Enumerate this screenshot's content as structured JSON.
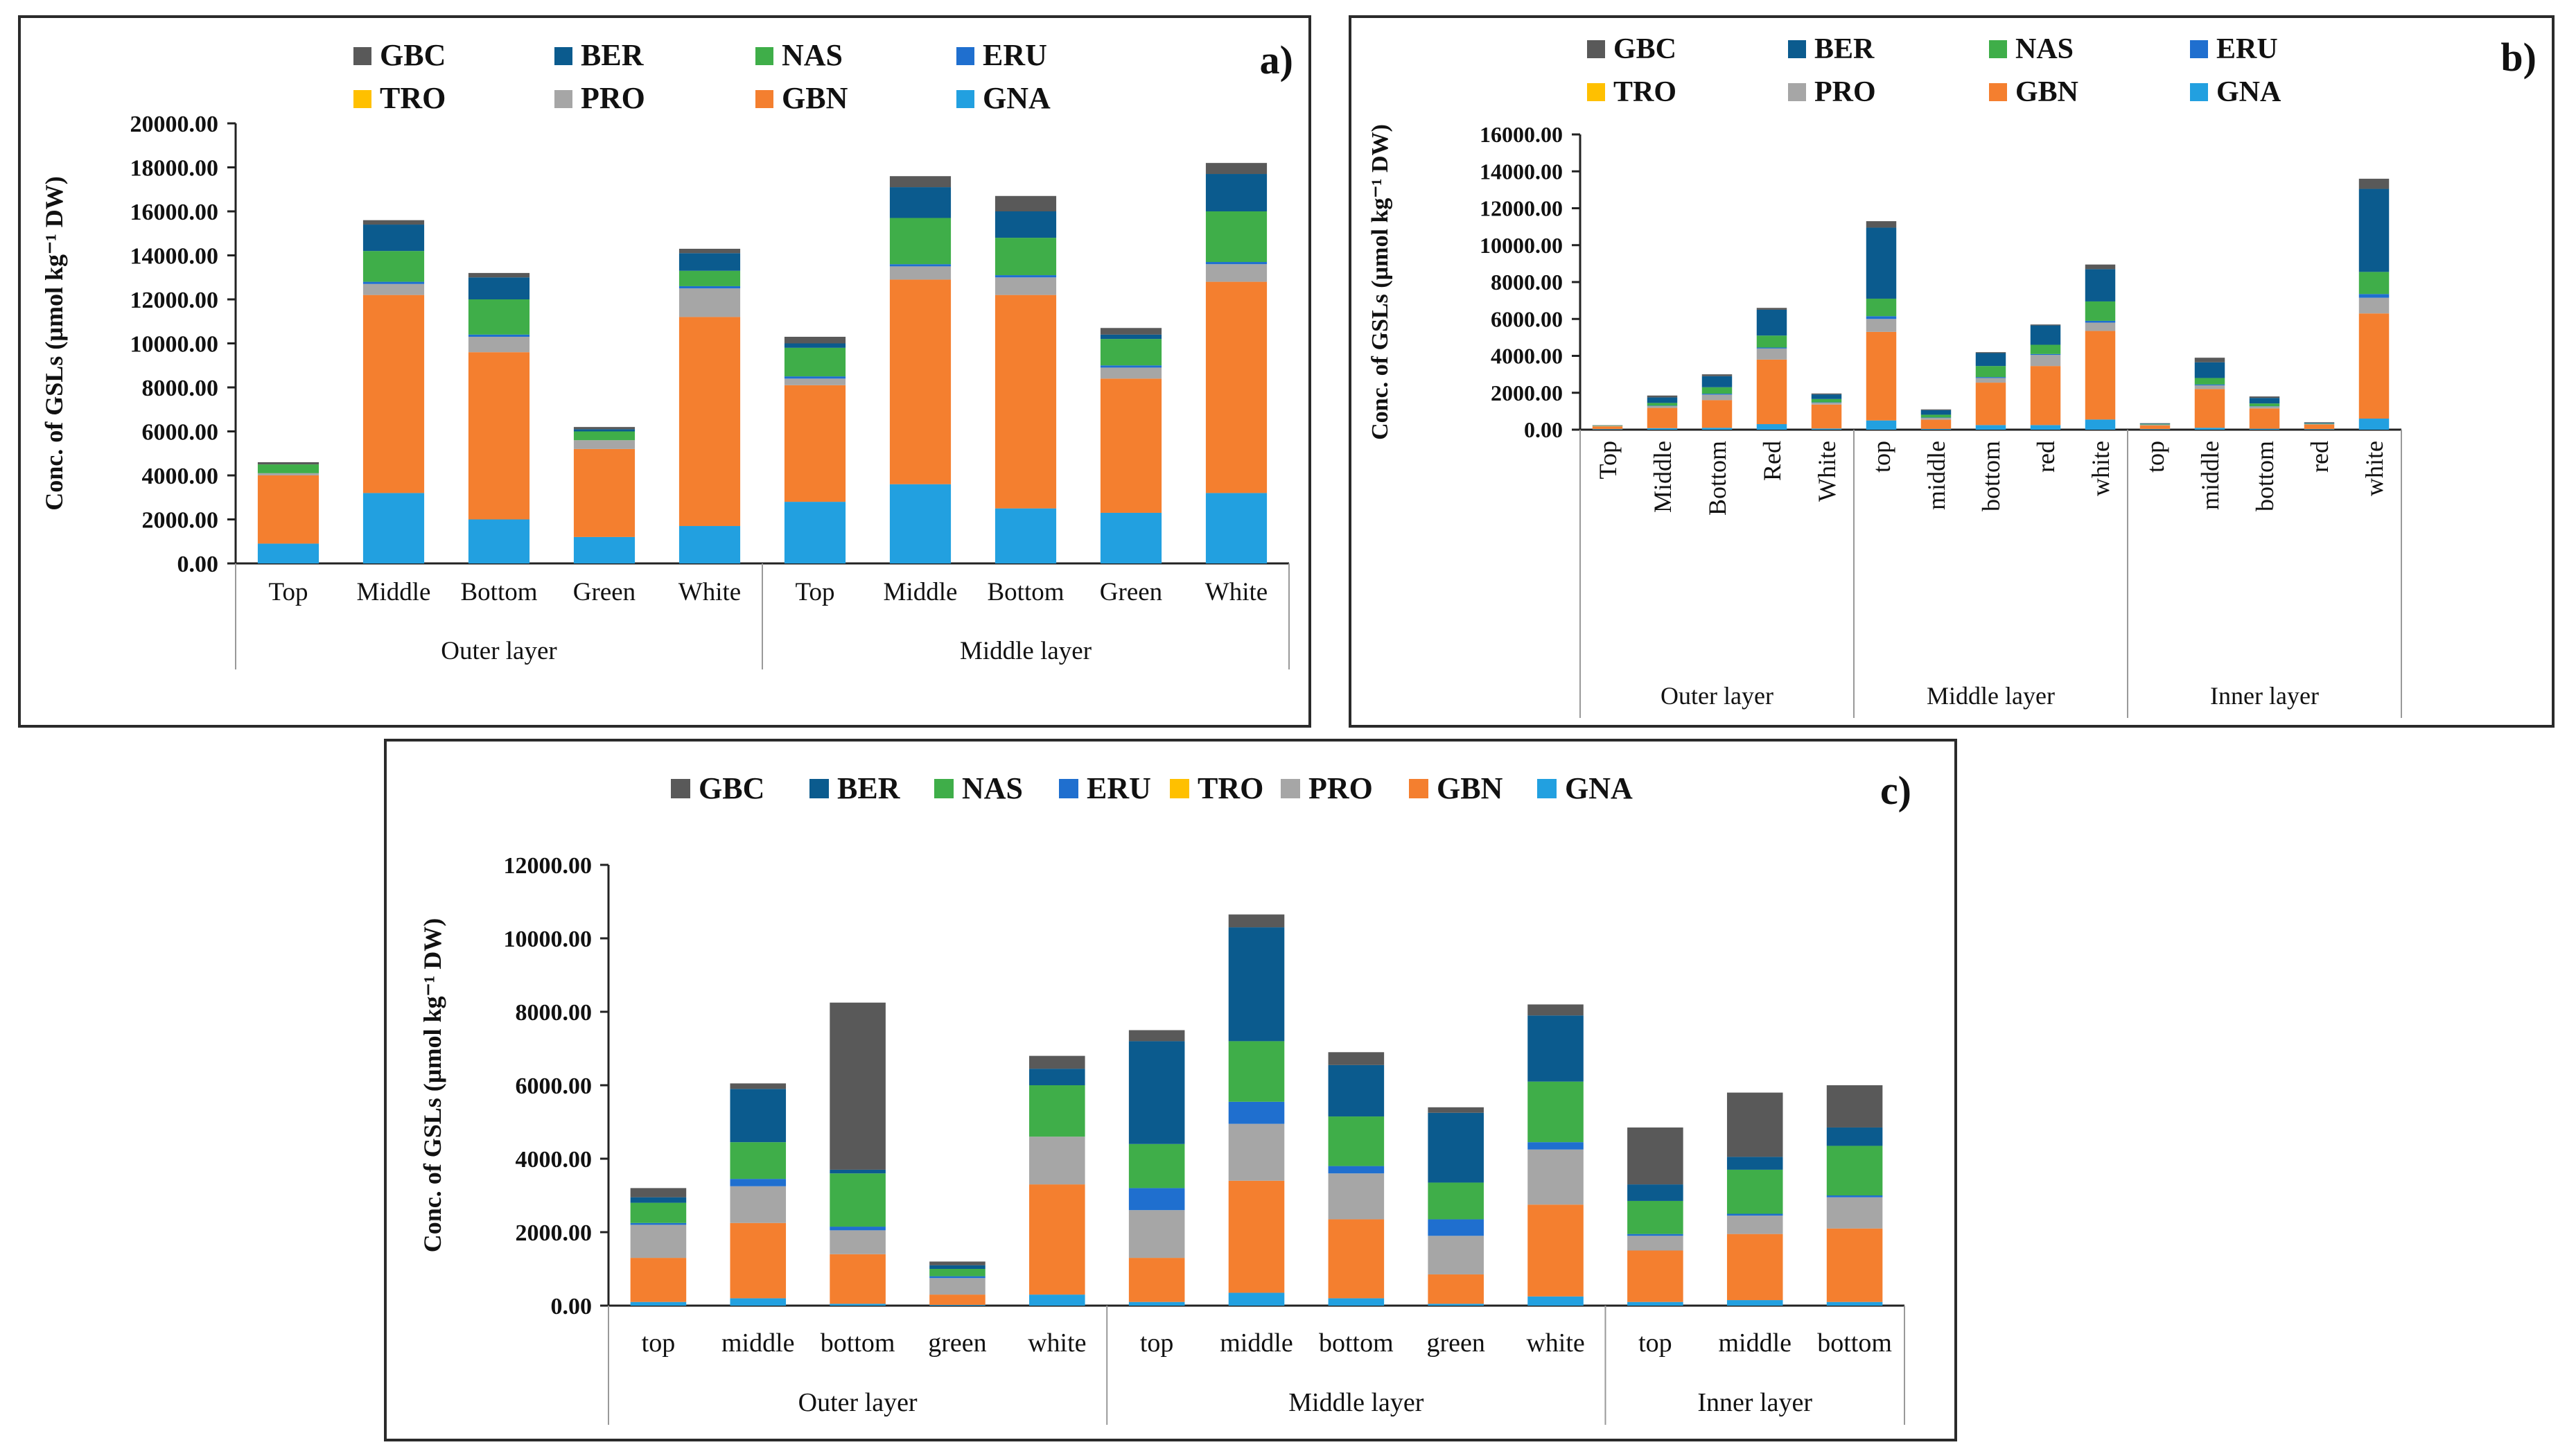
{
  "colors": {
    "GBC": "#595959",
    "BER": "#0b5b8e",
    "NAS": "#3fae49",
    "ERU": "#1f6fcf",
    "TRO": "#ffc000",
    "PRO": "#a6a6a6",
    "GBN": "#f47f2f",
    "GNA": "#22a0e0"
  },
  "chart_data": [
    {
      "type": "bar",
      "stacked": true,
      "panel_label": "a)",
      "ylabel": "Conc. of GSLs (µmol kg⁻¹ DW)",
      "ylim": [
        0,
        20000
      ],
      "ystep": 2000,
      "legend": [
        "GBC",
        "BER",
        "NAS",
        "ERU",
        "TRO",
        "PRO",
        "GBN",
        "GNA"
      ],
      "legend_position": "top",
      "label_rotation": "horizontal",
      "groups": [
        {
          "name": "Outer layer",
          "categories": [
            "Top",
            "Middle",
            "Bottom",
            "Green",
            "White"
          ]
        },
        {
          "name": "Middle layer",
          "categories": [
            "Top",
            "Middle",
            "Bottom",
            "Green",
            "White"
          ]
        }
      ],
      "categories": [
        "Top",
        "Middle",
        "Bottom",
        "Green",
        "White",
        "Top",
        "Middle",
        "Bottom",
        "Green",
        "White"
      ],
      "series": [
        {
          "name": "GNA",
          "values": [
            900,
            3200,
            2000,
            1200,
            1700,
            2800,
            3600,
            2500,
            2300,
            3200
          ]
        },
        {
          "name": "GBN",
          "values": [
            3100,
            9000,
            7600,
            4000,
            9500,
            5300,
            9300,
            9700,
            6100,
            9600
          ]
        },
        {
          "name": "PRO",
          "values": [
            100,
            500,
            700,
            400,
            1300,
            300,
            600,
            800,
            500,
            800
          ]
        },
        {
          "name": "TRO",
          "values": [
            0,
            0,
            0,
            0,
            0,
            0,
            0,
            0,
            0,
            0
          ]
        },
        {
          "name": "ERU",
          "values": [
            0,
            100,
            100,
            0,
            100,
            100,
            100,
            100,
            100,
            100
          ]
        },
        {
          "name": "NAS",
          "values": [
            400,
            1400,
            1600,
            400,
            700,
            1300,
            2100,
            1700,
            1200,
            2300
          ]
        },
        {
          "name": "BER",
          "values": [
            0,
            1200,
            1000,
            100,
            800,
            200,
            1400,
            1200,
            200,
            1700
          ]
        },
        {
          "name": "GBC",
          "values": [
            100,
            200,
            200,
            100,
            200,
            300,
            500,
            700,
            300,
            500
          ]
        }
      ]
    },
    {
      "type": "bar",
      "stacked": true,
      "panel_label": "b)",
      "ylabel": "Conc. of GSLs (µmol kg⁻¹ DW)",
      "ylim": [
        0,
        16000
      ],
      "ystep": 2000,
      "legend": [
        "GBC",
        "BER",
        "NAS",
        "ERU",
        "TRO",
        "PRO",
        "GBN",
        "GNA"
      ],
      "legend_position": "top",
      "label_rotation": "vertical",
      "groups": [
        {
          "name": "Outer layer",
          "categories": [
            "Top",
            "Middle",
            "Bottom",
            "Red",
            "White"
          ]
        },
        {
          "name": "Middle layer",
          "categories": [
            "top",
            "middle",
            "bottom",
            "red",
            "white"
          ]
        },
        {
          "name": "Inner layer",
          "categories": [
            "top",
            "middle",
            "bottom",
            "red",
            "white"
          ]
        }
      ],
      "categories": [
        "Top",
        "Middle",
        "Bottom",
        "Red",
        "White",
        "top",
        "middle",
        "bottom",
        "red",
        "white",
        "top",
        "middle",
        "bottom",
        "red",
        "white"
      ],
      "series": [
        {
          "name": "GNA",
          "values": [
            30,
            80,
            100,
            300,
            60,
            500,
            40,
            250,
            250,
            550,
            30,
            100,
            50,
            30,
            600
          ]
        },
        {
          "name": "GBN",
          "values": [
            150,
            1100,
            1500,
            3500,
            1300,
            4800,
            500,
            2300,
            3200,
            4800,
            200,
            2100,
            1100,
            250,
            5700
          ]
        },
        {
          "name": "PRO",
          "values": [
            20,
            100,
            300,
            600,
            100,
            700,
            100,
            250,
            600,
            450,
            50,
            200,
            100,
            30,
            850
          ]
        },
        {
          "name": "TRO",
          "values": [
            0,
            0,
            0,
            0,
            0,
            0,
            0,
            0,
            0,
            0,
            0,
            0,
            0,
            0,
            0
          ]
        },
        {
          "name": "ERU",
          "values": [
            0,
            20,
            50,
            50,
            20,
            150,
            20,
            50,
            50,
            100,
            0,
            50,
            20,
            0,
            200
          ]
        },
        {
          "name": "NAS",
          "values": [
            20,
            150,
            350,
            650,
            180,
            950,
            150,
            600,
            500,
            1050,
            30,
            350,
            150,
            20,
            1200
          ]
        },
        {
          "name": "BER",
          "values": [
            0,
            300,
            600,
            1400,
            250,
            3850,
            250,
            700,
            1050,
            1750,
            30,
            850,
            300,
            40,
            4500
          ]
        },
        {
          "name": "GBC",
          "values": [
            20,
            100,
            100,
            100,
            50,
            350,
            40,
            50,
            50,
            250,
            10,
            250,
            80,
            30,
            550
          ]
        }
      ]
    },
    {
      "type": "bar",
      "stacked": true,
      "panel_label": "c)",
      "ylabel": "Conc. of GSLs (µmol kg⁻¹ DW)",
      "ylim": [
        0,
        12000
      ],
      "ystep": 2000,
      "legend": [
        "GBC",
        "BER",
        "NAS",
        "ERU",
        "TRO",
        "PRO",
        "GBN",
        "GNA"
      ],
      "legend_position": "top",
      "label_rotation": "horizontal",
      "groups": [
        {
          "name": "Outer layer",
          "categories": [
            "top",
            "middle",
            "bottom",
            "green",
            "white"
          ]
        },
        {
          "name": "Middle layer",
          "categories": [
            "top",
            "middle",
            "bottom",
            "green",
            "white"
          ]
        },
        {
          "name": "Inner layer",
          "categories": [
            "top",
            "middle",
            "bottom"
          ]
        }
      ],
      "categories": [
        "top",
        "middle",
        "bottom",
        "green",
        "white",
        "top",
        "middle",
        "bottom",
        "green",
        "white",
        "top",
        "middle",
        "bottom"
      ],
      "series": [
        {
          "name": "GNA",
          "values": [
            100,
            200,
            50,
            20,
            300,
            100,
            350,
            200,
            50,
            250,
            100,
            150,
            100
          ]
        },
        {
          "name": "GBN",
          "values": [
            1200,
            2050,
            1350,
            280,
            3000,
            1200,
            3050,
            2150,
            800,
            2500,
            1400,
            1800,
            2000
          ]
        },
        {
          "name": "PRO",
          "values": [
            900,
            1000,
            650,
            450,
            1300,
            1300,
            1550,
            1250,
            1050,
            1500,
            400,
            500,
            850
          ]
        },
        {
          "name": "TRO",
          "values": [
            0,
            0,
            0,
            0,
            0,
            0,
            0,
            0,
            0,
            0,
            0,
            0,
            0
          ]
        },
        {
          "name": "ERU",
          "values": [
            50,
            200,
            100,
            50,
            0,
            600,
            600,
            200,
            450,
            200,
            50,
            50,
            50
          ]
        },
        {
          "name": "NAS",
          "values": [
            550,
            1000,
            1450,
            200,
            1400,
            1200,
            1650,
            1350,
            1000,
            1650,
            900,
            1200,
            1350
          ]
        },
        {
          "name": "BER",
          "values": [
            150,
            1450,
            100,
            100,
            450,
            2800,
            3100,
            1400,
            1900,
            1800,
            450,
            350,
            500
          ]
        },
        {
          "name": "GBC",
          "values": [
            250,
            150,
            4550,
            100,
            350,
            300,
            350,
            350,
            150,
            300,
            1550,
            1750,
            1150
          ]
        }
      ]
    }
  ]
}
